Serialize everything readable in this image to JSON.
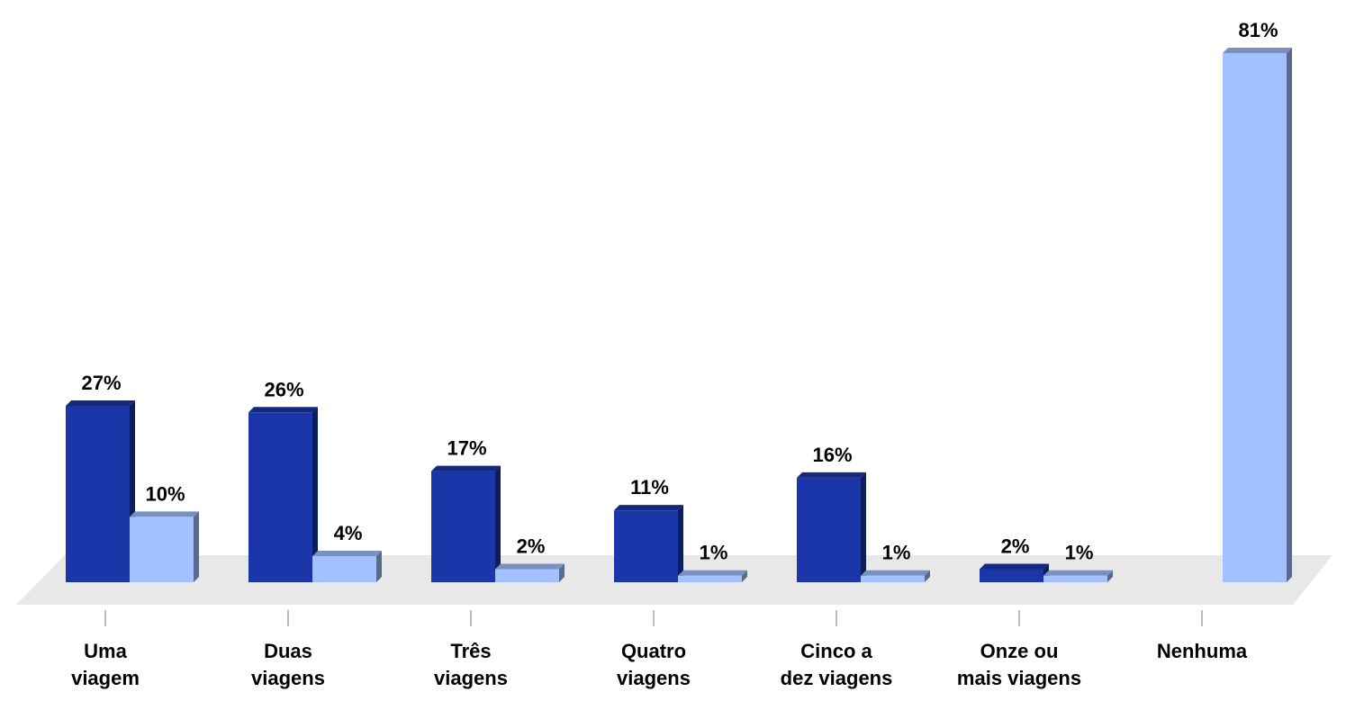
{
  "chart_data": {
    "type": "bar",
    "three_d": true,
    "grid": false,
    "legend": "none",
    "categories": [
      [
        "Uma",
        "viagem"
      ],
      [
        "Duas",
        "viagens"
      ],
      [
        "Três",
        "viagens"
      ],
      [
        "Quatro",
        "viagens"
      ],
      [
        "Cinco a",
        "dez viagens"
      ],
      [
        "Onze ou",
        "mais viagens"
      ],
      [
        "Nenhuma"
      ]
    ],
    "series": [
      {
        "color": "#1a36a8",
        "values": [
          27,
          26,
          17,
          11,
          16,
          2,
          null
        ],
        "labels": [
          "27%",
          "26%",
          "17%",
          "11%",
          "16%",
          "2%",
          ""
        ]
      },
      {
        "color": "#a3c1ff",
        "values": [
          10,
          4,
          2,
          1,
          1,
          1,
          81
        ],
        "labels": [
          "10%",
          "4%",
          "2%",
          "1%",
          "1%",
          "1%",
          "81%"
        ]
      }
    ],
    "ylim": [
      0,
      81
    ],
    "floor_color": "#e8e8e8"
  }
}
